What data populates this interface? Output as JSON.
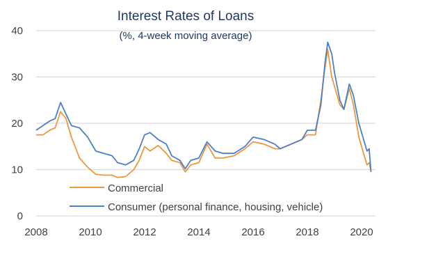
{
  "chart_data": {
    "type": "line",
    "title": "Interest Rates of Loans",
    "subtitle": "(%, 4-week moving average)",
    "xlabel": "",
    "ylabel": "",
    "xlim": [
      2008,
      2020.4
    ],
    "ylim": [
      0,
      40
    ],
    "x_ticks": [
      "2008",
      "2010",
      "2012",
      "2014",
      "2016",
      "2018",
      "2020"
    ],
    "y_ticks": [
      "0",
      "10",
      "20",
      "30",
      "40"
    ],
    "grid": "horizontal",
    "legend_position": "bottom-left inside",
    "series": [
      {
        "name": "Commercial",
        "color": "#f0963c",
        "x": [
          2008.0,
          2008.25,
          2008.5,
          2008.7,
          2008.9,
          2009.1,
          2009.3,
          2009.6,
          2009.9,
          2010.2,
          2010.5,
          2010.8,
          2011.0,
          2011.3,
          2011.6,
          2011.8,
          2012.0,
          2012.2,
          2012.5,
          2012.8,
          2013.0,
          2013.3,
          2013.5,
          2013.7,
          2014.0,
          2014.3,
          2014.6,
          2014.9,
          2015.3,
          2015.7,
          2016.0,
          2016.4,
          2016.8,
          2017.0,
          2017.4,
          2017.8,
          2018.0,
          2018.3,
          2018.5,
          2018.65,
          2018.75,
          2018.9,
          2019.0,
          2019.2,
          2019.35,
          2019.55,
          2019.7,
          2019.9,
          2020.1,
          2020.2,
          2020.28,
          2020.35
        ],
        "y": [
          17.5,
          17.5,
          18.5,
          19,
          22.5,
          21,
          17,
          12.5,
          10.5,
          9,
          8.8,
          8.8,
          8.3,
          8.5,
          10,
          12,
          15,
          14,
          15.2,
          13.5,
          12,
          11.5,
          9.5,
          11,
          11.5,
          15.5,
          12.5,
          12.5,
          13,
          14.5,
          16,
          15.5,
          14.5,
          14.5,
          15.5,
          16.5,
          17.5,
          17.5,
          25,
          32,
          36,
          30,
          28,
          24,
          23,
          27.5,
          24,
          17,
          13,
          11,
          11.5,
          9.5
        ]
      },
      {
        "name": "Consumer (personal finance, housing, vehicle)",
        "color": "#4a7fc9",
        "x": [
          2008.0,
          2008.25,
          2008.5,
          2008.7,
          2008.9,
          2009.1,
          2009.3,
          2009.6,
          2009.9,
          2010.2,
          2010.5,
          2010.8,
          2011.0,
          2011.3,
          2011.6,
          2011.8,
          2012.0,
          2012.2,
          2012.5,
          2012.8,
          2013.0,
          2013.3,
          2013.5,
          2013.7,
          2014.0,
          2014.3,
          2014.6,
          2014.9,
          2015.3,
          2015.7,
          2016.0,
          2016.4,
          2016.8,
          2017.0,
          2017.4,
          2017.8,
          2018.0,
          2018.3,
          2018.5,
          2018.65,
          2018.75,
          2018.9,
          2019.0,
          2019.2,
          2019.35,
          2019.55,
          2019.7,
          2019.9,
          2020.1,
          2020.2,
          2020.28,
          2020.35
        ],
        "y": [
          18.5,
          19.5,
          20.5,
          21,
          24.5,
          22,
          19.5,
          19,
          17,
          14,
          13.5,
          13,
          11.5,
          11,
          12,
          14.5,
          17.5,
          18,
          16.5,
          15.5,
          13,
          12,
          10.2,
          12,
          12.5,
          16,
          14,
          13.5,
          13.5,
          15,
          17,
          16.5,
          15.5,
          14.5,
          15.5,
          16.5,
          18.5,
          18.5,
          24,
          33,
          37.5,
          35,
          31,
          25,
          23,
          28.5,
          26,
          20,
          16,
          14,
          14.5,
          9.5
        ]
      }
    ]
  }
}
